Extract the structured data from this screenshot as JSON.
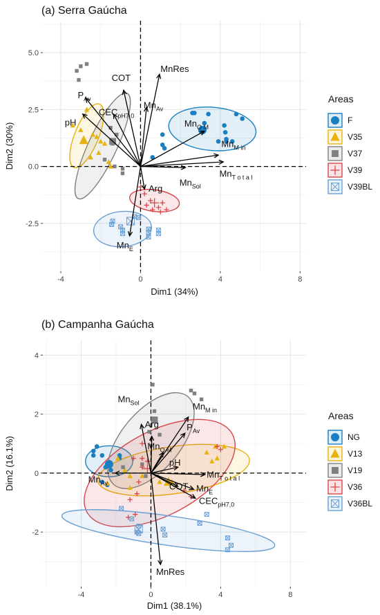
{
  "chart_data": [
    {
      "type": "scatter",
      "title": "(a) Serra Gaúcha",
      "xlabel": "Dim1 (34%)",
      "ylabel": "Dim2 (30%)",
      "xlim": [
        -4.9,
        8.3
      ],
      "ylim": [
        -4.6,
        6.4
      ],
      "xticks": [
        -4,
        0,
        4,
        8
      ],
      "yticks": [
        -2.5,
        0.0,
        2.5,
        5.0
      ],
      "ytick_labels": [
        "-2.5",
        "0.0",
        "2.5",
        "5.0"
      ],
      "grid": true,
      "legend": {
        "title": "Areas",
        "position": "right"
      },
      "groups": [
        {
          "name": "F",
          "color": "#1a7fc1",
          "marker": "circle",
          "ellipse": {
            "cx": 3.6,
            "cy": 1.65,
            "rx": 3.85,
            "ry": 1.9,
            "angle": -5
          },
          "mean": [
            3.1,
            1.6
          ],
          "points": [
            [
              2.6,
              2.35
            ],
            [
              2.7,
              2.35
            ],
            [
              3.2,
              1.9
            ],
            [
              3.4,
              2.3
            ],
            [
              3.9,
              1.1
            ],
            [
              4.2,
              1.8
            ],
            [
              4.25,
              1.5
            ],
            [
              4.3,
              1.2
            ],
            [
              4.3,
              1.1
            ],
            [
              4.6,
              1.1
            ],
            [
              4.8,
              2.3
            ],
            [
              5.1,
              2.1
            ],
            [
              1.1,
              0.95
            ],
            [
              1.2,
              0.8
            ],
            [
              1.1,
              1.4
            ],
            [
              0.6,
              0.4
            ]
          ]
        },
        {
          "name": "V35",
          "color": "#e8b20e",
          "marker": "triangle",
          "ellipse": {
            "cx": -2.7,
            "cy": 1.35,
            "rx": 3.0,
            "ry": 1.05,
            "angle": 68
          },
          "mean": [
            -2.85,
            1.15
          ],
          "points": [
            [
              -3.4,
              1.8
            ],
            [
              -3.0,
              1.6
            ],
            [
              -2.7,
              2.5
            ],
            [
              -2.4,
              1.4
            ],
            [
              -2.2,
              1.3
            ],
            [
              -2.0,
              1.1
            ],
            [
              -1.8,
              1.0
            ],
            [
              -2.1,
              0.6
            ],
            [
              -2.5,
              0.4
            ],
            [
              -1.5,
              0.0
            ],
            [
              -1.6,
              0.2
            ]
          ]
        },
        {
          "name": "V37",
          "color": "#808080",
          "marker": "square",
          "ellipse": {
            "cx": -1.9,
            "cy": 0.9,
            "rx": 5.1,
            "ry": 1.25,
            "angle": 65
          },
          "mean": [
            -1.4,
            1.1
          ],
          "points": [
            [
              -3.2,
              4.2
            ],
            [
              -3.0,
              4.4
            ],
            [
              -2.7,
              4.5
            ],
            [
              -3.1,
              3.8
            ],
            [
              -1.5,
              1.7
            ],
            [
              -1.2,
              1.4
            ],
            [
              -1.4,
              1.0
            ],
            [
              -1.8,
              0.3
            ],
            [
              -1.3,
              0.0
            ],
            [
              -0.9,
              -0.3
            ],
            [
              -0.9,
              -0.1
            ]
          ]
        },
        {
          "name": "V39",
          "color": "#d9444a",
          "marker": "plus",
          "ellipse": {
            "cx": 0.7,
            "cy": -1.5,
            "rx": 2.2,
            "ry": 0.95,
            "angle": -8
          },
          "mean": [
            0.7,
            -1.6
          ],
          "points": [
            [
              0.0,
              -0.9
            ],
            [
              0.2,
              -1.2
            ],
            [
              0.3,
              -1.7
            ],
            [
              0.5,
              -1.5
            ],
            [
              0.6,
              -1.9
            ],
            [
              0.9,
              -1.8
            ],
            [
              1.0,
              -2.0
            ],
            [
              1.1,
              -1.6
            ],
            [
              1.3,
              -1.9
            ]
          ]
        },
        {
          "name": "V39BL",
          "color": "#6a9fd4",
          "marker": "crossbox",
          "ellipse": {
            "cx": -0.9,
            "cy": -2.75,
            "rx": 2.55,
            "ry": 1.55,
            "angle": 5
          },
          "mean": [
            -0.5,
            -2.4
          ],
          "points": [
            [
              -1.4,
              -2.4
            ],
            [
              -1.45,
              -2.55
            ],
            [
              -1.0,
              -2.65
            ],
            [
              -0.9,
              -2.8
            ],
            [
              -0.9,
              -2.95
            ],
            [
              0.4,
              -2.75
            ],
            [
              0.4,
              -2.9
            ],
            [
              0.4,
              -3.1
            ],
            [
              0.9,
              -2.8
            ],
            [
              0.9,
              -2.95
            ],
            [
              -0.3,
              -2.2
            ],
            [
              -0.1,
              -2.25
            ]
          ]
        }
      ],
      "vectors": [
        {
          "label": "COT",
          "sub": "",
          "x": -0.85,
          "y": 3.35
        },
        {
          "label": "MnRes",
          "sub": "",
          "x": 0.95,
          "y": 4.05
        },
        {
          "label": "P",
          "sub": "Av",
          "x": -2.75,
          "y": 3.0
        },
        {
          "label": "CEC",
          "sub": "pH7,0",
          "x": -1.35,
          "y": 2.3
        },
        {
          "label": "pH",
          "sub": "",
          "x": -2.9,
          "y": 2.3
        },
        {
          "label": "Mn",
          "sub": "Av",
          "x": 0.3,
          "y": 2.6
        },
        {
          "label": "Mn",
          "sub": "O M",
          "x": 3.2,
          "y": 1.55
        },
        {
          "label": "Mn",
          "sub": "M in",
          "x": 3.9,
          "y": 0.5
        },
        {
          "label": "Mn",
          "sub": "T o t a l",
          "x": 4.15,
          "y": 0.2
        },
        {
          "label": "Mn",
          "sub": "Sol",
          "x": 2.25,
          "y": -0.05
        },
        {
          "label": "Arg",
          "sub": "",
          "x": 0.2,
          "y": -1.0
        },
        {
          "label": "Mn",
          "sub": "E",
          "x": -0.55,
          "y": -3.05
        }
      ]
    },
    {
      "type": "scatter",
      "title": "(b) Campanha Gaúcha",
      "xlabel": "Dim1 (38.1%)",
      "ylabel": "Dim2 (16.1%)",
      "xlim": [
        -6.2,
        8.9
      ],
      "ylim": [
        -3.85,
        4.5
      ],
      "xticks": [
        -4,
        0,
        4,
        8
      ],
      "yticks": [
        -2,
        0,
        2,
        4
      ],
      "ytick_labels": [
        "-2",
        "0",
        "2",
        "4"
      ],
      "grid": true,
      "legend": {
        "title": "Areas",
        "position": "right"
      },
      "groups": [
        {
          "name": "NG",
          "color": "#1a7fc1",
          "marker": "circle",
          "ellipse": {
            "cx": -2.4,
            "cy": 0.4,
            "rx": 1.6,
            "ry": 1.05,
            "angle": 0
          },
          "mean": [
            -2.4,
            0.3
          ],
          "points": [
            [
              -3.1,
              0.9
            ],
            [
              -3.3,
              0.75
            ],
            [
              -3.3,
              0.6
            ],
            [
              -2.8,
              0.6
            ],
            [
              -2.6,
              0.2
            ],
            [
              -2.3,
              0.1
            ],
            [
              -1.8,
              0.6
            ],
            [
              -1.8,
              0.5
            ],
            [
              -2.8,
              -0.3
            ],
            [
              -2.5,
              -0.4
            ]
          ]
        },
        {
          "name": "V13",
          "color": "#e8b20e",
          "marker": "triangle",
          "ellipse": {
            "cx": 1.3,
            "cy": 0.1,
            "rx": 5.2,
            "ry": 1.6,
            "angle": 8
          },
          "mean": [
            1.0,
            -0.3
          ],
          "points": [
            [
              -2.5,
              -0.35
            ],
            [
              -1.9,
              0.5
            ],
            [
              -1.5,
              0.1
            ],
            [
              -1.2,
              -0.1
            ],
            [
              -1.2,
              -0.5
            ],
            [
              -0.5,
              -0.1
            ],
            [
              0.5,
              -0.3
            ],
            [
              1.2,
              -0.3
            ],
            [
              3.2,
              0.7
            ],
            [
              3.5,
              0.4
            ],
            [
              3.7,
              0.9
            ],
            [
              3.8,
              0.5
            ],
            [
              4.2,
              0.9
            ]
          ]
        },
        {
          "name": "V19",
          "color": "#808080",
          "marker": "square",
          "ellipse": {
            "cx": 0.0,
            "cy": 1.1,
            "rx": 3.9,
            "ry": 2.0,
            "angle": 50
          },
          "mean": [
            0.2,
            1.8
          ],
          "points": [
            [
              0.2,
              2.1
            ],
            [
              0.2,
              1.8
            ],
            [
              0.1,
              3.0
            ],
            [
              2.3,
              2.8
            ],
            [
              2.5,
              2.7
            ],
            [
              2.9,
              2.5
            ],
            [
              -0.5,
              0.3
            ],
            [
              -0.3,
              -0.1
            ],
            [
              -0.1,
              1.4
            ],
            [
              -1.6,
              0.2
            ],
            [
              0.5,
              1.3
            ]
          ]
        },
        {
          "name": "V36",
          "color": "#d9444a",
          "marker": "plus",
          "ellipse": {
            "cx": 0.5,
            "cy": 0.0,
            "rx": 5.6,
            "ry": 2.85,
            "angle": 28
          },
          "mean": [
            -0.2,
            0.15
          ],
          "points": [
            [
              -0.5,
              1.0
            ],
            [
              -0.5,
              0.5
            ],
            [
              -0.2,
              0.4
            ],
            [
              -0.7,
              -0.3
            ],
            [
              -0.8,
              -0.7
            ],
            [
              -1.2,
              -0.9
            ],
            [
              -0.9,
              -1.4
            ],
            [
              -1.3,
              -1.5
            ],
            [
              1.9,
              -0.6
            ],
            [
              2.3,
              -0.8
            ],
            [
              3.8,
              0.9
            ],
            [
              4.0,
              0.8
            ],
            [
              -1.0,
              0.5
            ],
            [
              -0.5,
              0.2
            ]
          ]
        },
        {
          "name": "V36BL",
          "color": "#6a9fd4",
          "marker": "crossbox",
          "ellipse": {
            "cx": 1.0,
            "cy": -1.95,
            "rx": 7.3,
            "ry": 1.0,
            "angle": -8
          },
          "mean": [
            -0.7,
            -1.9
          ],
          "points": [
            [
              -1.7,
              -1.2
            ],
            [
              -1.1,
              -1.55
            ],
            [
              -0.8,
              -2.0
            ],
            [
              -0.7,
              -2.05
            ],
            [
              0.7,
              -1.9
            ],
            [
              0.8,
              -2.1
            ],
            [
              2.8,
              -1.7
            ],
            [
              3.2,
              -1.4
            ],
            [
              4.4,
              -2.2
            ],
            [
              4.6,
              -2.45
            ],
            [
              4.4,
              -2.6
            ],
            [
              -0.7,
              -1.8
            ]
          ]
        }
      ],
      "vectors": [
        {
          "label": "Mn",
          "sub": "Sol",
          "x": -0.55,
          "y": 1.65
        },
        {
          "label": "Arg",
          "sub": "",
          "x": 0.05,
          "y": 1.25
        },
        {
          "label": "Mn",
          "sub": "M in",
          "x": 2.15,
          "y": 1.9
        },
        {
          "label": "P",
          "sub": "Av",
          "x": 1.95,
          "y": 1.35
        },
        {
          "label": "Mn",
          "sub": "O M",
          "x": 0.7,
          "y": 0.7
        },
        {
          "label": "pH",
          "sub": "",
          "x": 1.55,
          "y": 0.2
        },
        {
          "label": "Mn",
          "sub": "T o t a l",
          "x": 3.1,
          "y": -0.05
        },
        {
          "label": "COT",
          "sub": "",
          "x": 1.55,
          "y": -0.45
        },
        {
          "label": "Mn",
          "sub": "E",
          "x": 2.45,
          "y": -0.55
        },
        {
          "label": "CEC",
          "sub": "pH7,0",
          "x": 2.55,
          "y": -0.85
        },
        {
          "label": "Mn",
          "sub": "Av",
          "x": -2.05,
          "y": 0.0
        },
        {
          "label": "MnRes",
          "sub": "",
          "x": 0.55,
          "y": -3.1
        }
      ]
    }
  ]
}
